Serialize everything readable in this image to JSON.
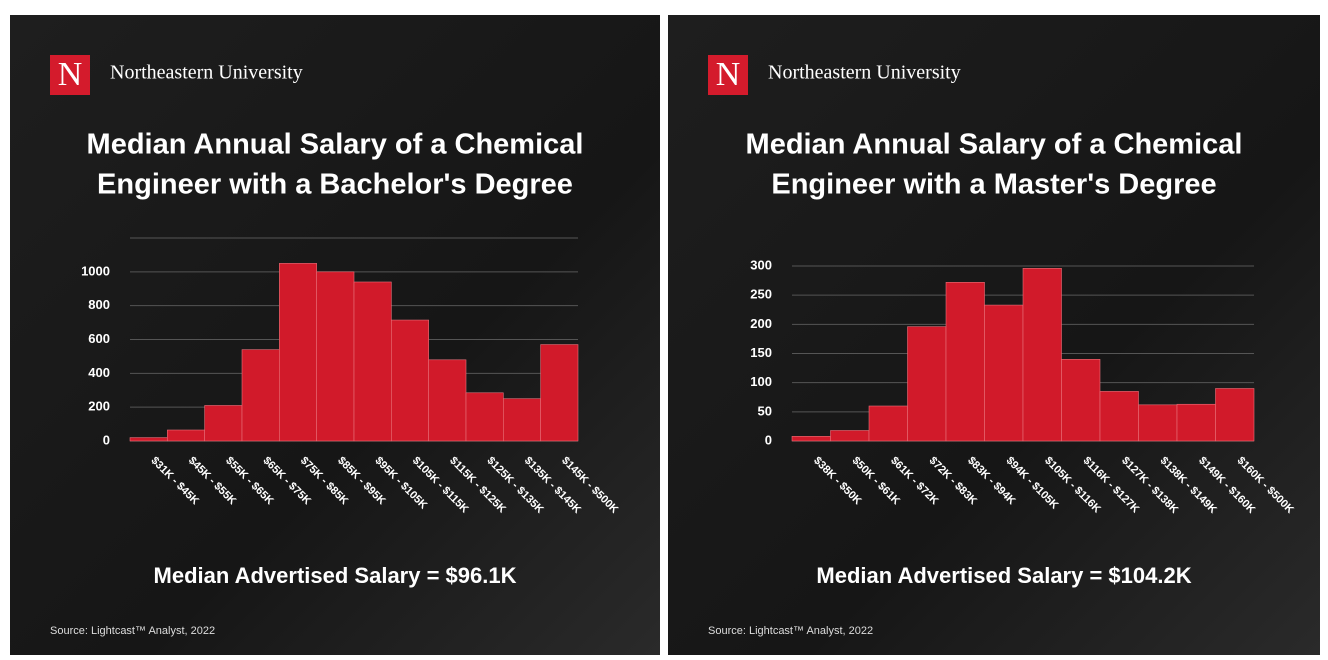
{
  "chart_data": [
    {
      "type": "bar",
      "logo": "N",
      "brand": "Northeastern University",
      "title": [
        "Median Annual Salary of a Chemical",
        "Engineer with a Bachelor's Degree"
      ],
      "categories": [
        "$31K - $45K",
        "$45K - $55K",
        "$55K - $65K",
        "$65K - $75K",
        "$75K - $85K",
        "$85K - $95K",
        "$95K - $105K",
        "$105K - $115K",
        "$115K - $125K",
        "$125K - $135K",
        "$135K - $145K",
        "$145K - $500K"
      ],
      "values": [
        20,
        65,
        210,
        540,
        1050,
        1000,
        940,
        715,
        480,
        285,
        250,
        570
      ],
      "color": "#d11a2a",
      "ylim": [
        0,
        1200
      ],
      "yticks": [
        0,
        200,
        400,
        600,
        800,
        1000
      ],
      "grid": true,
      "annotation": "Median Advertised Salary = $96.1K",
      "source": "Source: Lightcast™ Analyst, 2022"
    },
    {
      "type": "bar",
      "logo": "N",
      "brand": "Northeastern University",
      "title": [
        "Median Annual Salary of a Chemical",
        "Engineer with a Master's Degree"
      ],
      "categories": [
        "$38K - $50K",
        "$50K - $61K",
        "$61K - $72K",
        "$72K - $83K",
        "$83K - $94K",
        "$94K - $105K",
        "$105K - $116K",
        "$116K - $127K",
        "$127K - $138K",
        "$138K - $149K",
        "$149K - $160K",
        "$160K - $500K"
      ],
      "values": [
        8,
        18,
        60,
        196,
        272,
        233,
        296,
        140,
        85,
        62,
        63,
        90
      ],
      "color": "#d11a2a",
      "ylim": [
        0,
        300
      ],
      "yticks": [
        0,
        50,
        100,
        150,
        200,
        250,
        300
      ],
      "grid": true,
      "annotation": "Median Advertised Salary = $104.2K",
      "source": "Source: Lightcast™ Analyst, 2022"
    }
  ]
}
